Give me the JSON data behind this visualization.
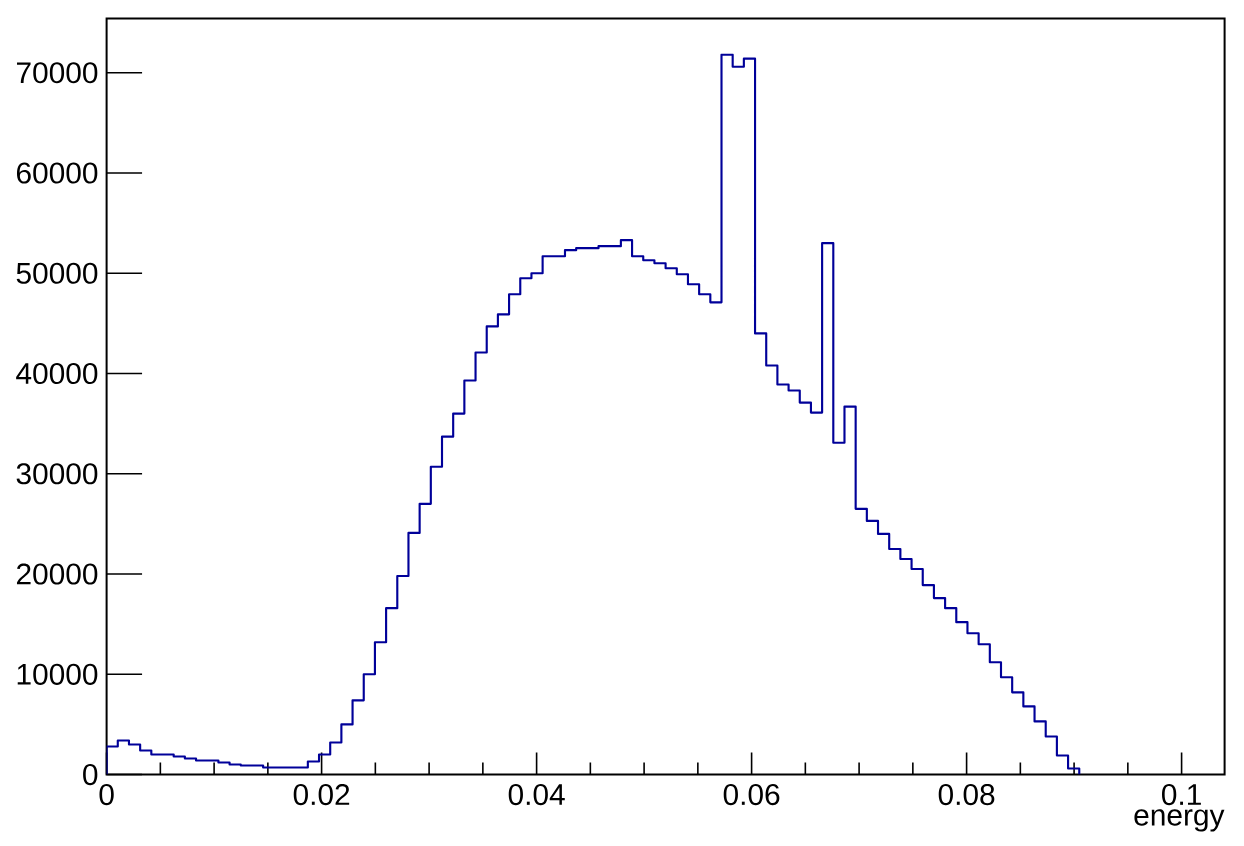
{
  "chart_data": {
    "type": "histogram",
    "xlabel": "energy",
    "bins": [
      0,
      0.00104,
      0.00208,
      0.00312,
      0.00416,
      0.0052,
      0.00624,
      0.00728,
      0.00832,
      0.00936,
      0.0104,
      0.01144,
      0.01248,
      0.01352,
      0.01456,
      0.0156,
      0.01664,
      0.01768,
      0.01872,
      0.01976,
      0.0208,
      0.02184,
      0.02288,
      0.02392,
      0.02496,
      0.026,
      0.02704,
      0.02808,
      0.02912,
      0.03016,
      0.0312,
      0.03224,
      0.03328,
      0.03432,
      0.03536,
      0.0364,
      0.03744,
      0.03848,
      0.03952,
      0.04056,
      0.0416,
      0.04264,
      0.04368,
      0.04472,
      0.04576,
      0.0468,
      0.04784,
      0.04888,
      0.04992,
      0.05096,
      0.052,
      0.05304,
      0.05408,
      0.05512,
      0.05616,
      0.0572,
      0.05824,
      0.05928,
      0.06032,
      0.06136,
      0.0624,
      0.06344,
      0.06448,
      0.06552,
      0.06656,
      0.0676,
      0.06864,
      0.06968,
      0.07072,
      0.07176,
      0.0728,
      0.07384,
      0.07488,
      0.07592,
      0.07696,
      0.078,
      0.07904,
      0.08008,
      0.08112,
      0.08216,
      0.0832,
      0.08424,
      0.08528,
      0.08632,
      0.08736,
      0.0884,
      0.08944,
      0.09048
    ],
    "values": [
      2800,
      3400,
      3000,
      2400,
      2000,
      2000,
      1800,
      1600,
      1400,
      1400,
      1200,
      1000,
      900,
      900,
      700,
      700,
      700,
      700,
      1300,
      2000,
      3200,
      5000,
      7400,
      10000,
      13200,
      16600,
      19800,
      24100,
      27000,
      30700,
      33700,
      36000,
      39300,
      42100,
      44700,
      45900,
      47900,
      49500,
      50000,
      51700,
      51700,
      52300,
      52500,
      52500,
      52700,
      52700,
      53300,
      51700,
      51300,
      51000,
      50500,
      49900,
      48900,
      47900,
      47100,
      71800,
      70600,
      71400,
      44000,
      40800,
      38900,
      38300,
      37100,
      36100,
      53000,
      33100,
      36700,
      26500,
      25300,
      24000,
      22500,
      21500,
      20500,
      18900,
      17600,
      16600,
      15200,
      14100,
      13000,
      11200,
      9700,
      8200,
      6800,
      5300,
      3800,
      1900,
      600
    ],
    "color": "#000099",
    "xlim": [
      0,
      0.104
    ],
    "ylim": [
      0,
      75400
    ],
    "xticks": [
      0,
      0.02,
      0.04,
      0.06,
      0.08,
      0.1
    ],
    "yticks": [
      0,
      10000,
      20000,
      30000,
      40000,
      50000,
      60000,
      70000
    ]
  }
}
